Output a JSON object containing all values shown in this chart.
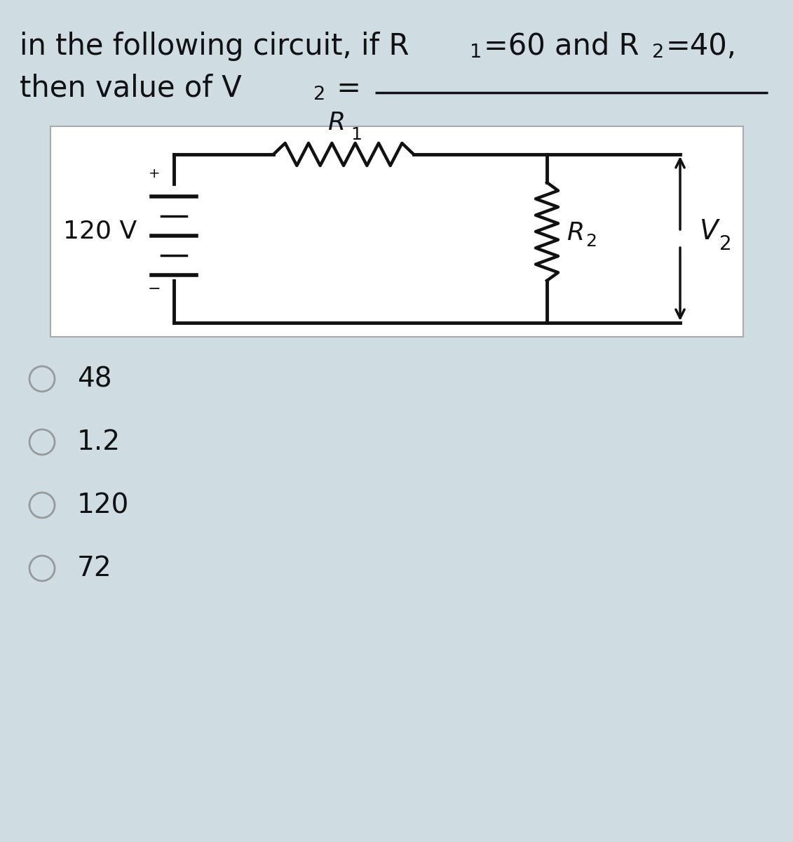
{
  "bg_color": "#cfdde3",
  "circuit_bg": "#ffffff",
  "font_color": "#111111",
  "circuit_color": "#111111",
  "label_color_R": "#111111",
  "label_color_V": "#111111",
  "options": [
    "48",
    "1.2",
    "120",
    "72"
  ],
  "title_fs": 30,
  "option_fs": 28
}
